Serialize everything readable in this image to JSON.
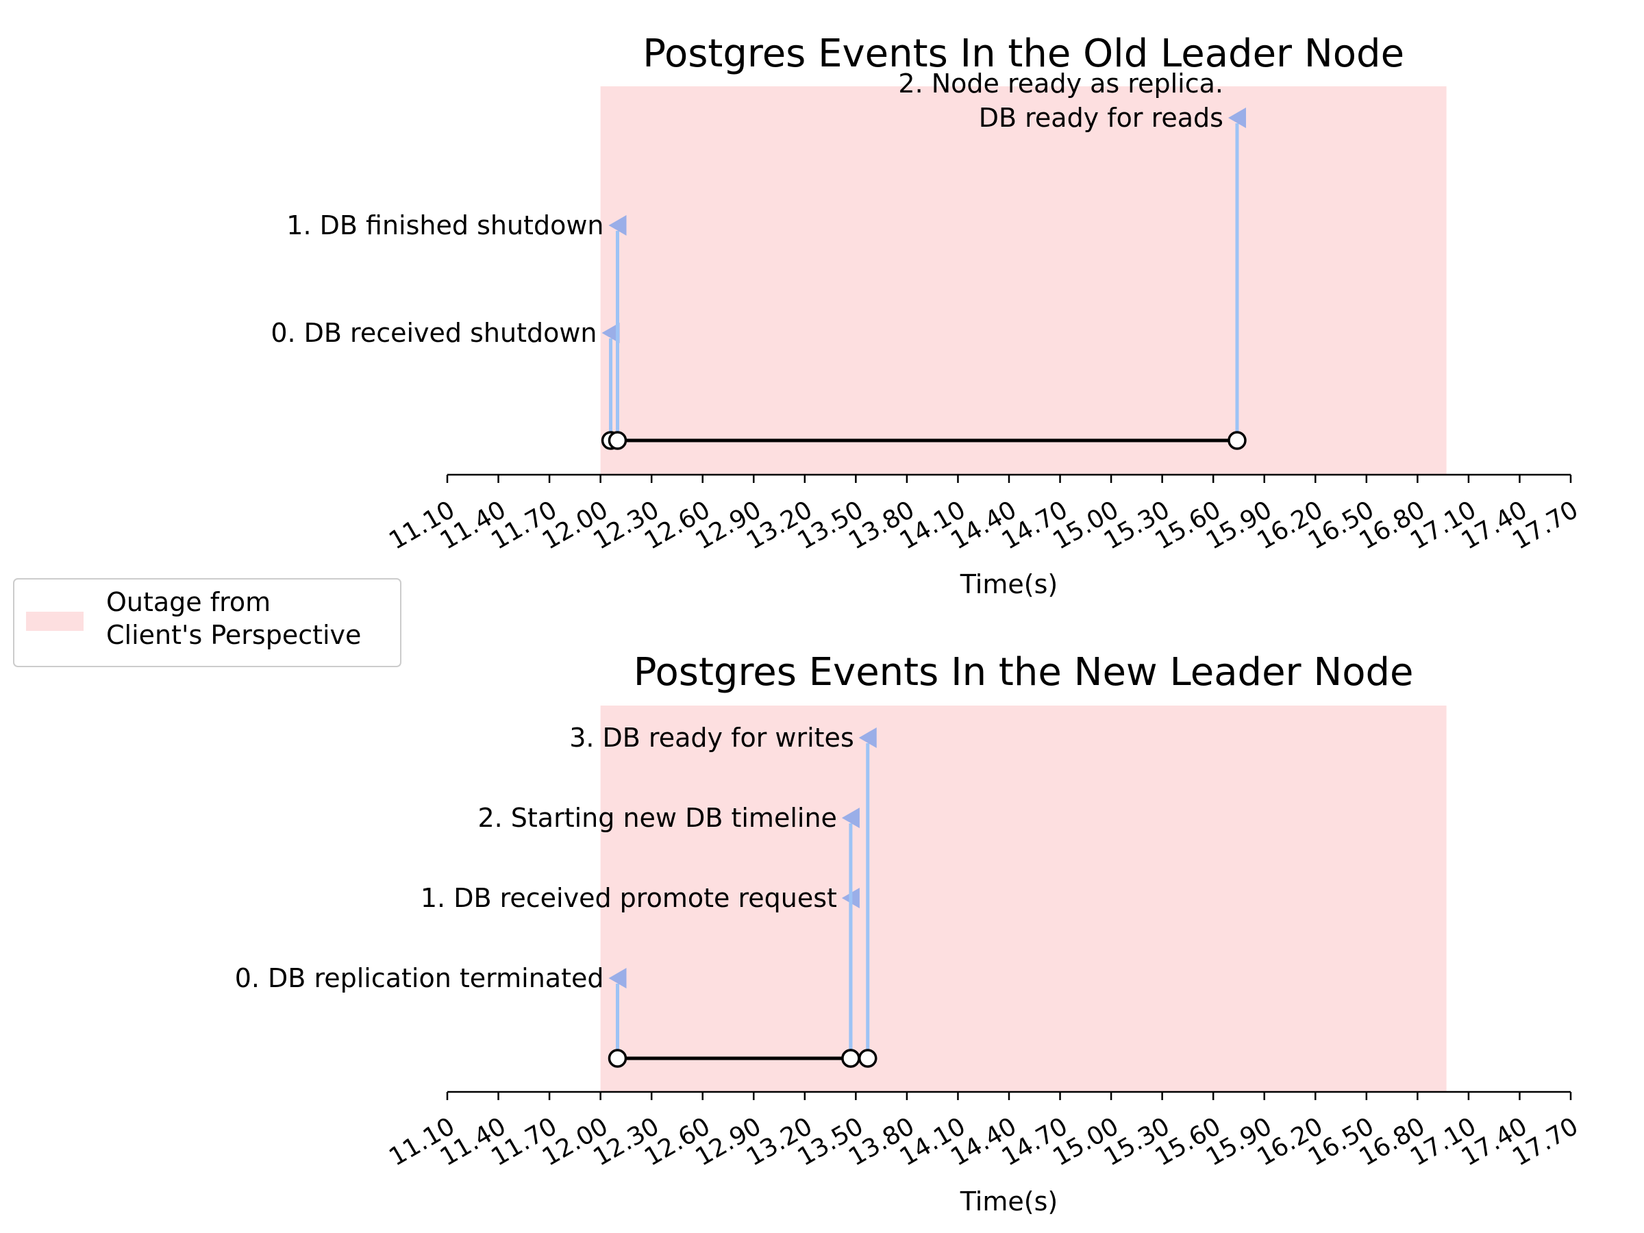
{
  "chart_data": [
    {
      "type": "timeline",
      "title": "Postgres Events In the Old Leader Node",
      "xlabel": "Time(s)",
      "xlim": [
        11.1,
        17.7
      ],
      "x_ticks": [
        "11.10",
        "11.40",
        "11.70",
        "12.00",
        "12.30",
        "12.60",
        "12.90",
        "13.20",
        "13.50",
        "13.80",
        "14.10",
        "14.40",
        "14.70",
        "15.00",
        "15.30",
        "15.60",
        "15.90",
        "16.20",
        "16.50",
        "16.80",
        "17.10",
        "17.40",
        "17.70"
      ],
      "outage_span": [
        12.0,
        16.97
      ],
      "events": [
        {
          "label": "0. DB received shutdown",
          "time": 12.06,
          "level": 1
        },
        {
          "label": "1. DB finished shutdown",
          "time": 12.1,
          "level": 2
        },
        {
          "label": "2. Node ready as replica.\nDB ready for reads",
          "time": 15.74,
          "level": 3
        }
      ]
    },
    {
      "type": "timeline",
      "title": "Postgres Events In the New Leader Node",
      "xlabel": "Time(s)",
      "xlim": [
        11.1,
        17.7
      ],
      "x_ticks": [
        "11.10",
        "11.40",
        "11.70",
        "12.00",
        "12.30",
        "12.60",
        "12.90",
        "13.20",
        "13.50",
        "13.80",
        "14.10",
        "14.40",
        "14.70",
        "15.00",
        "15.30",
        "15.60",
        "15.90",
        "16.20",
        "16.50",
        "16.80",
        "17.10",
        "17.40",
        "17.70"
      ],
      "outage_span": [
        12.0,
        16.97
      ],
      "events": [
        {
          "label": "0. DB replication terminated",
          "time": 12.1,
          "level": 1
        },
        {
          "label": "1. DB received promote request",
          "time": 13.47,
          "level": 2
        },
        {
          "label": "2. Starting new DB timeline",
          "time": 13.47,
          "level": 3
        },
        {
          "label": "3. DB ready for writes",
          "time": 13.57,
          "level": 4
        }
      ]
    }
  ],
  "legend": {
    "label": "Outage from\nClient's Perspective",
    "color": "#fddfe0",
    "placement": "left-between-panels"
  },
  "colors": {
    "outage": "#fddfe0",
    "stem": "#9dc3f5",
    "arrow": "#9aaee8",
    "baseline": "#000000"
  }
}
